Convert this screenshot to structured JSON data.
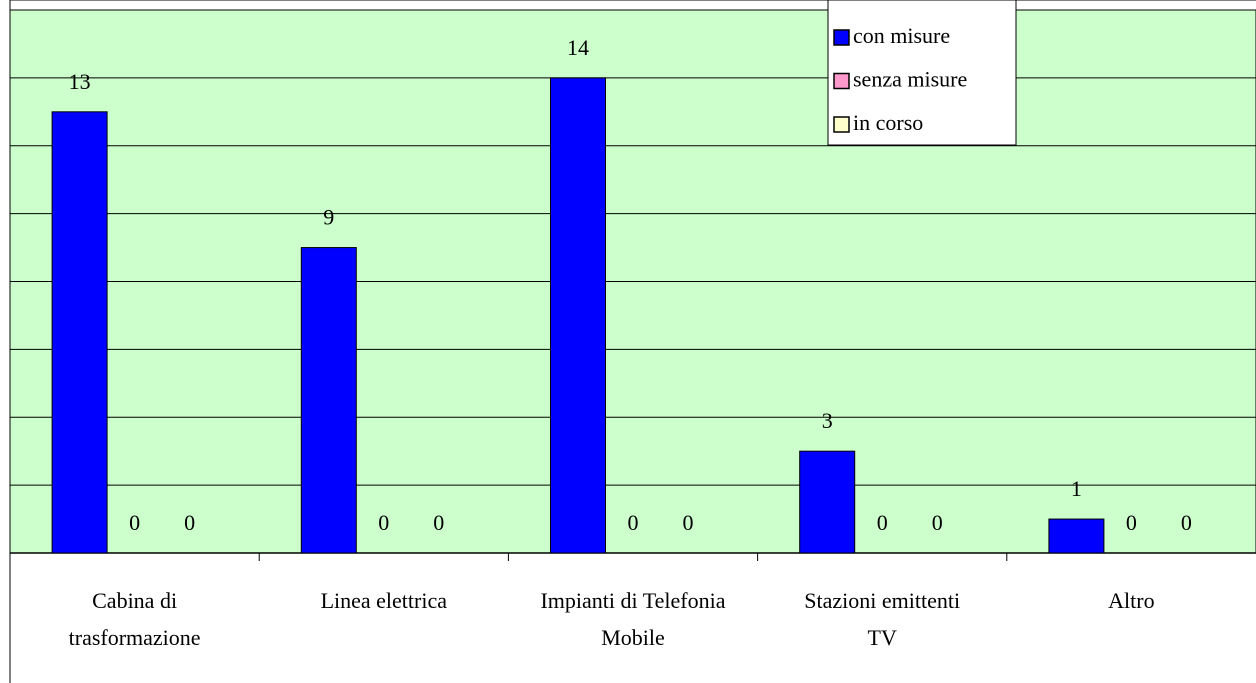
{
  "chart_data": {
    "type": "bar",
    "categories": [
      "Cabina di trasformazione",
      "Linea elettrica",
      "Impianti di Telefonia Mobile",
      "Stazioni emittenti TV",
      "Altro"
    ],
    "series": [
      {
        "name": "con misure",
        "color": "#0000ff",
        "values": [
          13,
          9,
          14,
          3,
          1
        ]
      },
      {
        "name": "senza misure",
        "color": "#ff99cc",
        "values": [
          0,
          0,
          0,
          0,
          0
        ]
      },
      {
        "name": "in corso",
        "color": "#ffffcc",
        "values": [
          0,
          0,
          0,
          0,
          0
        ]
      }
    ],
    "ylim": [
      0,
      16
    ],
    "yticks": [
      0,
      2,
      4,
      6,
      8,
      10,
      12,
      14,
      16
    ],
    "grid": true,
    "legend": "top-right",
    "background": "#ccffcc"
  }
}
